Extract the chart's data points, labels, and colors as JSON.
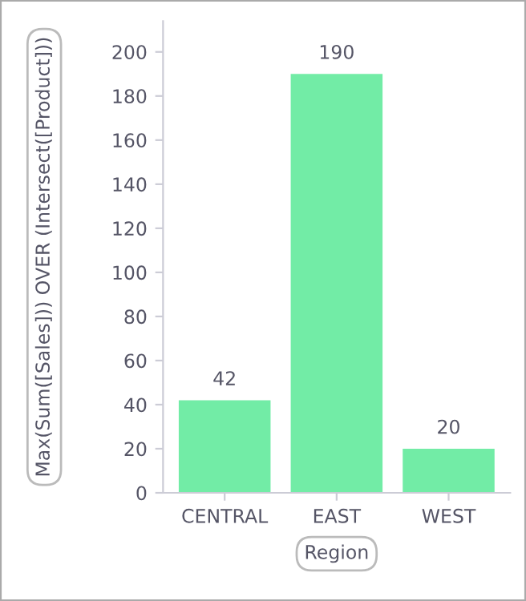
{
  "chart_data": {
    "type": "bar",
    "xlabel": "Region",
    "ylabel": "Max(Sum([Sales])) OVER (Intersect([Product]))",
    "categories": [
      "CENTRAL",
      "EAST",
      "WEST"
    ],
    "values": [
      42,
      190,
      20
    ],
    "color": "#72eca6",
    "ylim": [
      0,
      214
    ],
    "yticks": [
      0,
      20,
      40,
      60,
      80,
      100,
      120,
      140,
      160,
      180,
      200
    ],
    "data_labels": true,
    "grid": false,
    "legend": false
  }
}
